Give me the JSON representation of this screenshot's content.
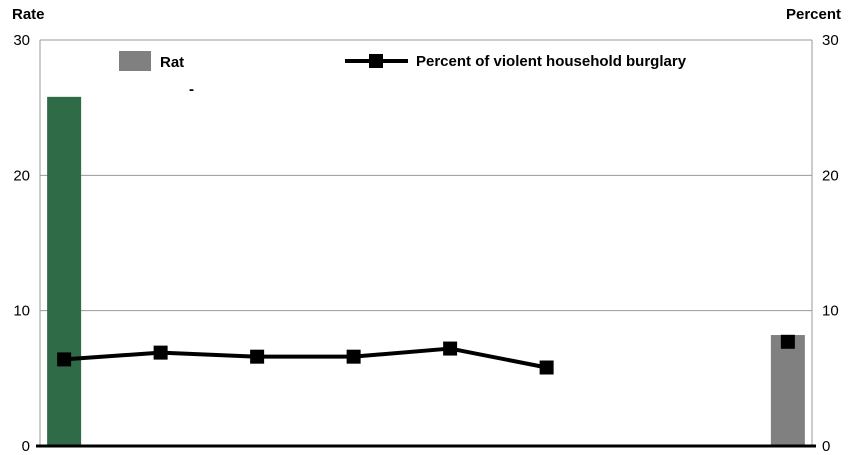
{
  "chart_data": {
    "type": "bar",
    "y_left_label": "Rate",
    "y_right_label": "Percent",
    "ylim": [
      0,
      30
    ],
    "yticks": [
      0,
      10,
      20,
      30
    ],
    "grid": true,
    "legend": [
      {
        "label": "Rat",
        "kind": "bar",
        "color": "#808080"
      },
      {
        "label": "Percent of violent household burglary",
        "kind": "line-marker",
        "color": "#000000"
      }
    ],
    "legend_fragment": "-",
    "bars": [
      {
        "x": 0,
        "value": 25.8,
        "color": "#2e6b46"
      },
      {
        "x": 7.5,
        "value": 8.2,
        "color": "#808080"
      }
    ],
    "line": {
      "name": "Percent of violent household burglary",
      "x": [
        0,
        1,
        2,
        3,
        4,
        5,
        7.5
      ],
      "values": [
        6.4,
        6.9,
        6.6,
        6.6,
        7.2,
        5.8,
        7.7
      ],
      "connected_points": 6
    },
    "xlim": [
      -0.25,
      7.75
    ]
  }
}
